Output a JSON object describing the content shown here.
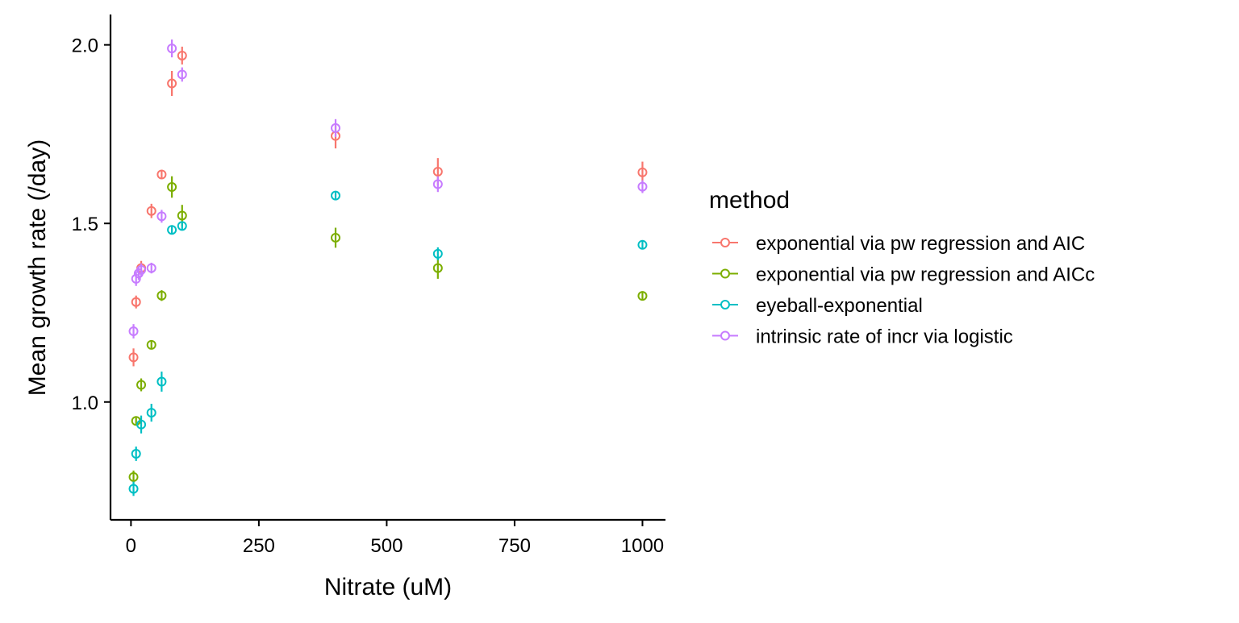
{
  "chart_data": {
    "type": "scatter",
    "xlabel": "Nitrate (uM)",
    "ylabel": "Mean growth rate (/day)",
    "xlim": [
      -40,
      1045
    ],
    "ylim": [
      0.67,
      2.085
    ],
    "x_ticks": [
      0,
      250,
      500,
      750,
      1000
    ],
    "x_tick_labels": [
      "0",
      "250",
      "500",
      "750",
      "1000"
    ],
    "y_ticks": [
      1.0,
      1.5,
      2.0
    ],
    "y_tick_labels": [
      "1.0",
      "1.5",
      "2.0"
    ],
    "grid": false,
    "error_bars": true,
    "legend_title": "method",
    "legend_position": "right",
    "series": [
      {
        "name": "exponential via pw regression and AIC",
        "color": "#F8766D",
        "points": [
          {
            "x": 5,
            "y": 1.125,
            "err": 0.025
          },
          {
            "x": 10,
            "y": 1.28,
            "err": 0.018
          },
          {
            "x": 20,
            "y": 1.375,
            "err": 0.02
          },
          {
            "x": 40,
            "y": 1.535,
            "err": 0.02
          },
          {
            "x": 60,
            "y": 1.637,
            "err": 0.012
          },
          {
            "x": 80,
            "y": 1.892,
            "err": 0.035
          },
          {
            "x": 100,
            "y": 1.97,
            "err": 0.025
          },
          {
            "x": 400,
            "y": 1.745,
            "err": 0.035
          },
          {
            "x": 600,
            "y": 1.645,
            "err": 0.038
          },
          {
            "x": 1000,
            "y": 1.643,
            "err": 0.03
          }
        ]
      },
      {
        "name": "exponential via pw regression and AICc",
        "color": "#7CAE00",
        "points": [
          {
            "x": 5,
            "y": 0.79,
            "err": 0.018
          },
          {
            "x": 10,
            "y": 0.947,
            "err": 0.012
          },
          {
            "x": 20,
            "y": 1.048,
            "err": 0.018
          },
          {
            "x": 40,
            "y": 1.16,
            "err": 0.012
          },
          {
            "x": 60,
            "y": 1.298,
            "err": 0.015
          },
          {
            "x": 80,
            "y": 1.602,
            "err": 0.03
          },
          {
            "x": 100,
            "y": 1.522,
            "err": 0.03
          },
          {
            "x": 400,
            "y": 1.46,
            "err": 0.028
          },
          {
            "x": 600,
            "y": 1.375,
            "err": 0.03
          },
          {
            "x": 1000,
            "y": 1.297,
            "err": 0.012
          }
        ]
      },
      {
        "name": "eyeball-exponential",
        "color": "#00BFC4",
        "points": [
          {
            "x": 5,
            "y": 0.757,
            "err": 0.02
          },
          {
            "x": 10,
            "y": 0.855,
            "err": 0.02
          },
          {
            "x": 20,
            "y": 0.937,
            "err": 0.025
          },
          {
            "x": 40,
            "y": 0.97,
            "err": 0.025
          },
          {
            "x": 60,
            "y": 1.057,
            "err": 0.028
          },
          {
            "x": 80,
            "y": 1.482,
            "err": 0.012
          },
          {
            "x": 100,
            "y": 1.493,
            "err": 0.012
          },
          {
            "x": 400,
            "y": 1.578,
            "err": 0.01
          },
          {
            "x": 600,
            "y": 1.415,
            "err": 0.018
          },
          {
            "x": 1000,
            "y": 1.44,
            "err": 0.012
          }
        ]
      },
      {
        "name": "intrinsic rate of incr via logistic",
        "color": "#C77CFF",
        "points": [
          {
            "x": 5,
            "y": 1.198,
            "err": 0.02
          },
          {
            "x": 10,
            "y": 1.345,
            "err": 0.02
          },
          {
            "x": 15,
            "y": 1.36,
            "err": 0.018
          },
          {
            "x": 20,
            "y": 1.37,
            "err": 0.018
          },
          {
            "x": 40,
            "y": 1.375,
            "err": 0.015
          },
          {
            "x": 60,
            "y": 1.52,
            "err": 0.018
          },
          {
            "x": 80,
            "y": 1.99,
            "err": 0.025
          },
          {
            "x": 100,
            "y": 1.917,
            "err": 0.02
          },
          {
            "x": 400,
            "y": 1.767,
            "err": 0.025
          },
          {
            "x": 600,
            "y": 1.61,
            "err": 0.022
          },
          {
            "x": 1000,
            "y": 1.603,
            "err": 0.018
          }
        ]
      }
    ]
  }
}
